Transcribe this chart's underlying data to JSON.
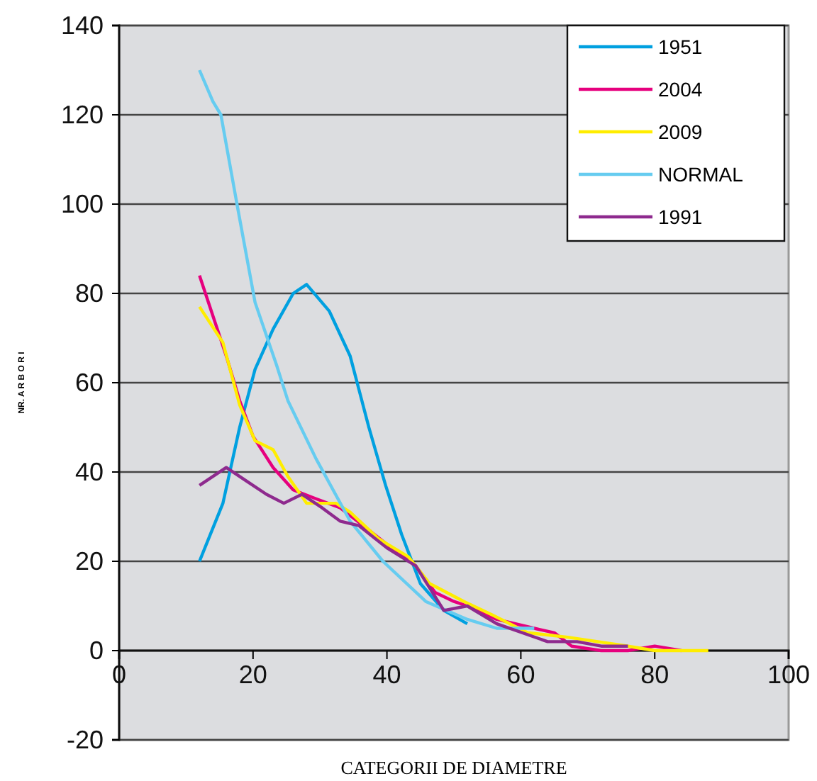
{
  "chart_data": {
    "type": "line",
    "xlabel": "CATEGORII DE DIAMETRE",
    "ylabel": "NR. A R B O R I",
    "xlim": [
      0,
      100
    ],
    "xticks": [
      0,
      20,
      40,
      60,
      80,
      100
    ],
    "ylim": [
      -20,
      140
    ],
    "yticks": [
      -20,
      0,
      20,
      40,
      60,
      80,
      100,
      120,
      140
    ],
    "grid": "y",
    "legend": "top right",
    "marker": "none",
    "line_style": "solid",
    "series": [
      {
        "name": "1951",
        "color": "#00a0e0",
        "x": [
          12,
          15.5,
          18,
          20.3,
          23,
          26,
          28,
          31.4,
          34.5,
          37.3,
          39.8,
          42.2,
          45,
          48.5,
          52
        ],
        "values": [
          20,
          33,
          50,
          63,
          72,
          80,
          82,
          76,
          66,
          50,
          37,
          26,
          15,
          9,
          6
        ]
      },
      {
        "name": "2004",
        "color": "#e6007e",
        "x": [
          12,
          16,
          18,
          20,
          23,
          26,
          29.4,
          33,
          37.3,
          41.5,
          44.3,
          47.2,
          50,
          52,
          56.4,
          62,
          65,
          67.6,
          72,
          76,
          80,
          84
        ],
        "values": [
          84,
          66,
          56,
          48,
          41,
          36,
          34,
          32,
          27,
          22,
          19,
          13,
          11,
          10,
          7,
          5,
          4,
          1,
          0,
          0,
          1,
          0
        ]
      },
      {
        "name": "2009",
        "color": "#ffed00",
        "x": [
          12,
          15.5,
          18,
          20.3,
          23,
          25.2,
          28,
          32.4,
          34.5,
          38.8,
          43.2,
          46.4,
          51.5,
          55.7,
          61,
          67,
          76,
          80,
          88
        ],
        "values": [
          77,
          69,
          55,
          47,
          45,
          39,
          33,
          33,
          31,
          25,
          21,
          15,
          11,
          8,
          4,
          3,
          1,
          0,
          0
        ]
      },
      {
        "name": "NORMAL",
        "color": "#66ccf0",
        "x": [
          12,
          14,
          15.2,
          17.6,
          20.3,
          23.5,
          25.2,
          29.4,
          34.5,
          39.4,
          45.8,
          52,
          56.4,
          60,
          62
        ],
        "values": [
          130,
          123,
          120,
          100,
          78,
          64,
          56,
          43,
          29,
          20,
          11,
          7,
          5,
          5,
          5
        ]
      },
      {
        "name": "1991",
        "color": "#8e2a8e",
        "x": [
          12,
          16,
          19,
          22,
          24.6,
          27.3,
          30.3,
          33,
          35.8,
          40,
          44.3,
          48.5,
          52,
          56.4,
          64,
          68.4,
          72,
          76
        ],
        "values": [
          37,
          41,
          38,
          35,
          33,
          35,
          32,
          29,
          28,
          23,
          19,
          9,
          10,
          6,
          2,
          2,
          1,
          1
        ]
      }
    ]
  }
}
